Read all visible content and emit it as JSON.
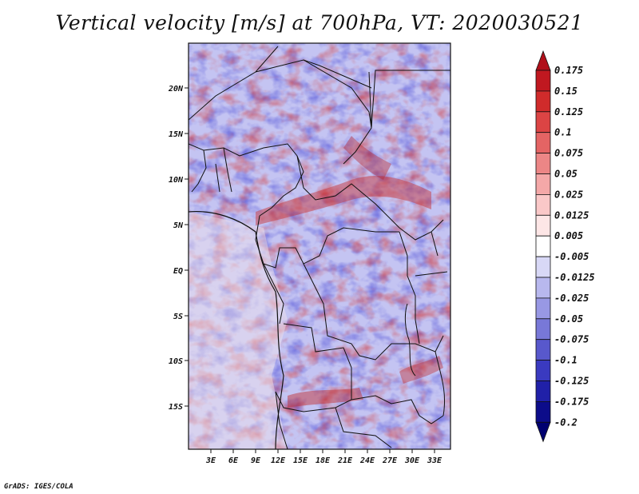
{
  "title": "Vertical velocity [m/s] at 700hPa, VT: 2020030521",
  "credit": "GrADS: IGES/COLA",
  "map": {
    "lat_labels": [
      "20N",
      "15N",
      "10N",
      "5N",
      "EQ",
      "5S",
      "10S",
      "15S"
    ],
    "lon_labels": [
      "3E",
      "6E",
      "9E",
      "12E",
      "15E",
      "18E",
      "21E",
      "24E",
      "27E",
      "30E",
      "33E"
    ]
  },
  "colorbar": {
    "labels": [
      "0.175",
      "0.15",
      "0.125",
      "0.1",
      "0.075",
      "0.05",
      "0.025",
      "0.0125",
      "0.005",
      "-0.005",
      "-0.0125",
      "-0.025",
      "-0.05",
      "-0.075",
      "-0.1",
      "-0.125",
      "-0.175",
      "-0.2"
    ],
    "colors": [
      "#b00f1a",
      "#c01820",
      "#d02b2b",
      "#dc4444",
      "#e46464",
      "#ec8686",
      "#f4a8a8",
      "#fac8c8",
      "#fde6e6",
      "#ffffff",
      "#d8d8f6",
      "#b8b8ee",
      "#9898e4",
      "#7878d8",
      "#5858cc",
      "#3a3ac0",
      "#2020a8",
      "#0c0c8a",
      "#000070"
    ]
  }
}
